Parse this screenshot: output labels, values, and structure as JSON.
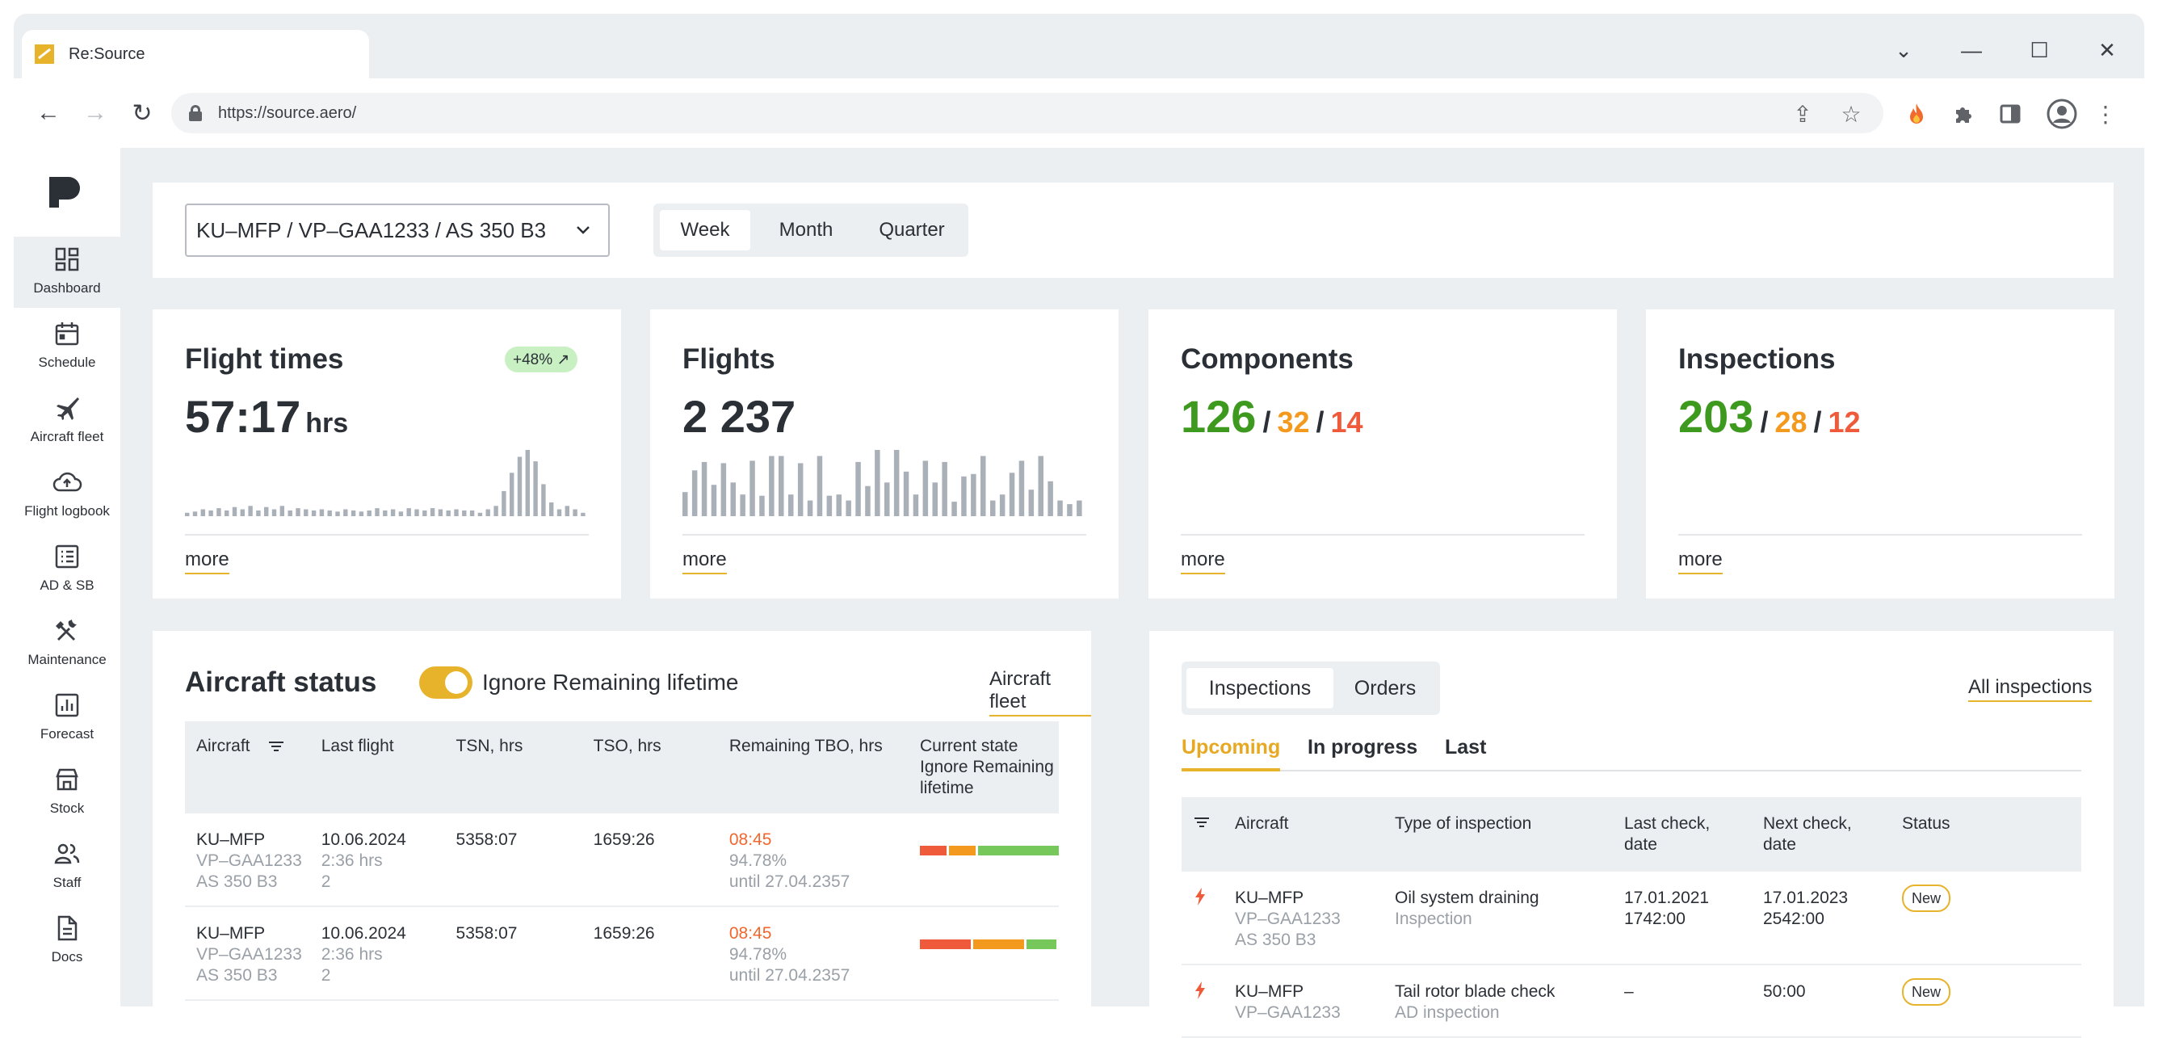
{
  "browser": {
    "tab_title": "Re:Source",
    "url": "https://source.aero/"
  },
  "sidebar": {
    "items": [
      {
        "label": "Dashboard",
        "icon": "dashboard-icon"
      },
      {
        "label": "Schedule",
        "icon": "calendar-icon"
      },
      {
        "label": "Aircraft fleet",
        "icon": "airplane-icon"
      },
      {
        "label": "Flight logbook",
        "icon": "cloud-upload-icon"
      },
      {
        "label": "AD & SB",
        "icon": "list-icon"
      },
      {
        "label": "Maintenance",
        "icon": "tools-icon"
      },
      {
        "label": "Forecast",
        "icon": "chart-icon"
      },
      {
        "label": "Stock",
        "icon": "store-icon"
      },
      {
        "label": "Staff",
        "icon": "people-icon"
      },
      {
        "label": "Docs",
        "icon": "document-icon"
      }
    ]
  },
  "filter": {
    "aircraft_value": "KU–MFP / VP–GAA1233 / AS 350 B3",
    "periods": [
      "Week",
      "Month",
      "Quarter"
    ],
    "active_period": "Week"
  },
  "stats": {
    "flight_times": {
      "title": "Flight times",
      "value": "57:17",
      "unit": "hrs",
      "badge": "+48% ↗",
      "more": "more",
      "bars": [
        3,
        4,
        6,
        5,
        7,
        5,
        8,
        6,
        9,
        5,
        8,
        6,
        9,
        5,
        7,
        6,
        5,
        6,
        5,
        4,
        6,
        5,
        4,
        5,
        7,
        5,
        6,
        4,
        7,
        6,
        5,
        7,
        6,
        5,
        6,
        5,
        5,
        3,
        6,
        9,
        22,
        38,
        52,
        58,
        48,
        28,
        12,
        6,
        9,
        6,
        3
      ]
    },
    "flights": {
      "title": "Flights",
      "value": "2 237",
      "more": "more",
      "bars": [
        20,
        38,
        45,
        26,
        44,
        28,
        18,
        46,
        17,
        50,
        50,
        18,
        44,
        13,
        50,
        17,
        18,
        13,
        45,
        25,
        55,
        28,
        55,
        37,
        18,
        46,
        28,
        45,
        12,
        33,
        35,
        50,
        13,
        18,
        36,
        46,
        22,
        50,
        29,
        13,
        10,
        13
      ]
    },
    "components": {
      "title": "Components",
      "green": "126",
      "orange": "32",
      "red": "14",
      "sep": "/",
      "more": "more"
    },
    "inspections": {
      "title": "Inspections",
      "green": "203",
      "orange": "28",
      "red": "12",
      "sep": "/",
      "more": "more"
    }
  },
  "aircraft_status": {
    "title": "Aircraft status",
    "toggle_label": "Ignore Remaining lifetime",
    "toggle_on": true,
    "link": "Aircraft fleet",
    "columns": [
      "Aircraft",
      "Last flight",
      "TSN, hrs",
      "TSO, hrs",
      "Remaining TBO, hrs",
      "Current state Ignore Remaining lifetime"
    ],
    "rows": [
      {
        "reg": "KU–MFP",
        "sub1": "VP–GAA1233",
        "sub2": "AS 350 B3",
        "date": "10.06.2024",
        "dur": "2:36 hrs",
        "count": "2",
        "tsn": "5358:07",
        "tso": "1659:26",
        "rem": "08:45",
        "pct": "94.78%",
        "until": "until 27.04.2357",
        "state": {
          "red": 0.2,
          "orange": 0.2,
          "green": 0.6
        }
      },
      {
        "reg": "KU–MFP",
        "sub1": "VP–GAA1233",
        "sub2": "AS 350 B3",
        "date": "10.06.2024",
        "dur": "2:36 hrs",
        "count": "2",
        "tsn": "5358:07",
        "tso": "1659:26",
        "rem": "08:45",
        "pct": "94.78%",
        "until": "until 27.04.2357",
        "state": {
          "red": 0.38,
          "orange": 0.38,
          "green": 0.22
        }
      }
    ]
  },
  "inspections_panel": {
    "tabs": [
      "Inspections",
      "Orders"
    ],
    "active_tab": "Inspections",
    "link": "All inspections",
    "subtabs": [
      "Upcoming",
      "In progress",
      "Last"
    ],
    "active_subtab": "Upcoming",
    "columns": [
      "Aircraft",
      "Type of inspection",
      "Last check, date",
      "Next check, date",
      "Status"
    ],
    "rows": [
      {
        "reg": "KU–MFP",
        "sub1": "VP–GAA1233",
        "sub2": "AS 350 B3",
        "type": "Oil system draining",
        "type_sub": "Inspection",
        "last1": "17.01.2021",
        "last2": "1742:00",
        "next1": "17.01.2023",
        "next2": "2542:00",
        "status": "New"
      },
      {
        "reg": "KU–MFP",
        "sub1": "VP–GAA1233",
        "sub2": "",
        "type": "Tail rotor blade check",
        "type_sub": "AD inspection",
        "last1": "–",
        "last2": "",
        "next1": "50:00",
        "next2": "",
        "status": "New"
      }
    ]
  },
  "colors": {
    "accent": "#e7b32b",
    "green": "#3d9a1e",
    "orange": "#f39a1e",
    "red": "#ef5a3a",
    "bars": "#a9b0b8"
  }
}
